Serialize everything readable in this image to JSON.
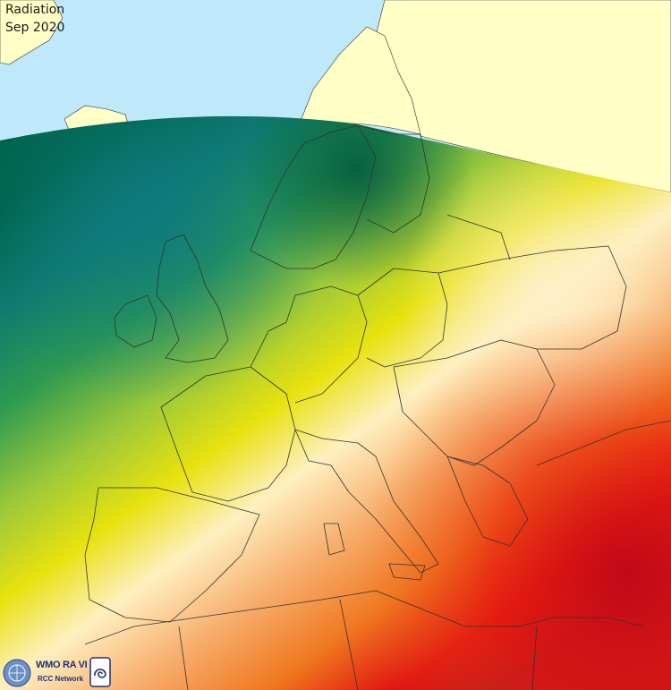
{
  "map": {
    "title": "Radiation",
    "period": "Sep 2020",
    "colors": {
      "ocean": "#bfe8fb",
      "land": "#ffffc6",
      "low": "#00634a",
      "teal": "#0e8a8a",
      "green": "#66b84a",
      "yellow": "#e8e20e",
      "cream": "#fff0c0",
      "orange": "#f08020",
      "red": "#e01010",
      "darkred": "#b00a1e",
      "border": "#333333"
    }
  },
  "logo": {
    "organisation": "WMO RA VI",
    "network": "RCC Network",
    "emblem_icon": "wmo-emblem-icon",
    "swirl_icon": "rcc-swirl-icon"
  }
}
